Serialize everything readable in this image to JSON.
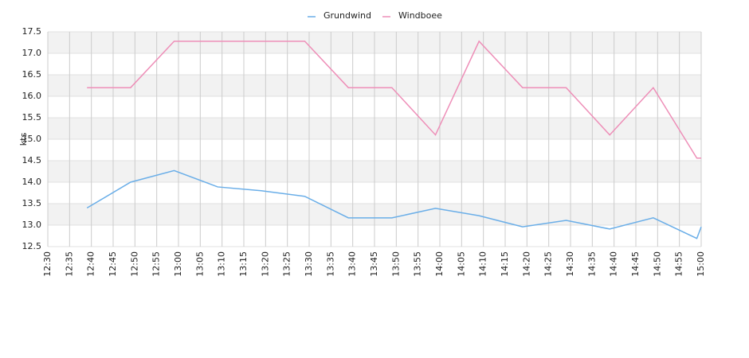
{
  "chart_data": {
    "type": "line",
    "y_label": "kts",
    "x": [
      "12:39",
      "12:49",
      "12:59",
      "13:09",
      "13:19",
      "13:29",
      "13:39",
      "13:49",
      "13:59",
      "14:09",
      "14:19",
      "14:29",
      "14:39",
      "14:49",
      "14:59",
      "15:00"
    ],
    "series": [
      {
        "name": "Grundwind",
        "color": "#6aaee8",
        "values": [
          13.4,
          14.0,
          14.27,
          13.89,
          13.8,
          13.67,
          13.17,
          13.17,
          13.39,
          13.22,
          12.96,
          13.11,
          12.91,
          13.17,
          12.69,
          12.96
        ]
      },
      {
        "name": "Windboee",
        "color": "#ee8fb8",
        "values": [
          16.2,
          16.2,
          17.28,
          17.28,
          17.28,
          17.28,
          16.2,
          16.2,
          15.1,
          17.28,
          16.2,
          16.2,
          15.1,
          16.2,
          14.56,
          14.56
        ]
      }
    ],
    "xlim": [
      "12:30",
      "15:00"
    ],
    "xticks": [
      "12:30",
      "12:35",
      "12:40",
      "12:45",
      "12:50",
      "12:55",
      "13:00",
      "13:05",
      "13:10",
      "13:15",
      "13:20",
      "13:25",
      "13:30",
      "13:35",
      "13:40",
      "13:45",
      "13:50",
      "13:55",
      "14:00",
      "14:05",
      "14:10",
      "14:15",
      "14:20",
      "14:25",
      "14:30",
      "14:35",
      "14:40",
      "14:45",
      "14:50",
      "14:55",
      "15:00"
    ],
    "ylim": [
      12.5,
      17.5
    ],
    "yticks": [
      12.5,
      {
        "value": 13,
        "label": "13.0"
      },
      13.5,
      {
        "value": 14,
        "label": "14.0"
      },
      14.5,
      {
        "value": 15,
        "label": "15.0"
      },
      15.5,
      {
        "value": 16,
        "label": "16.0"
      },
      16.5,
      {
        "value": 17,
        "label": "17.0"
      },
      17.5
    ],
    "grid": true,
    "legend": "top"
  }
}
